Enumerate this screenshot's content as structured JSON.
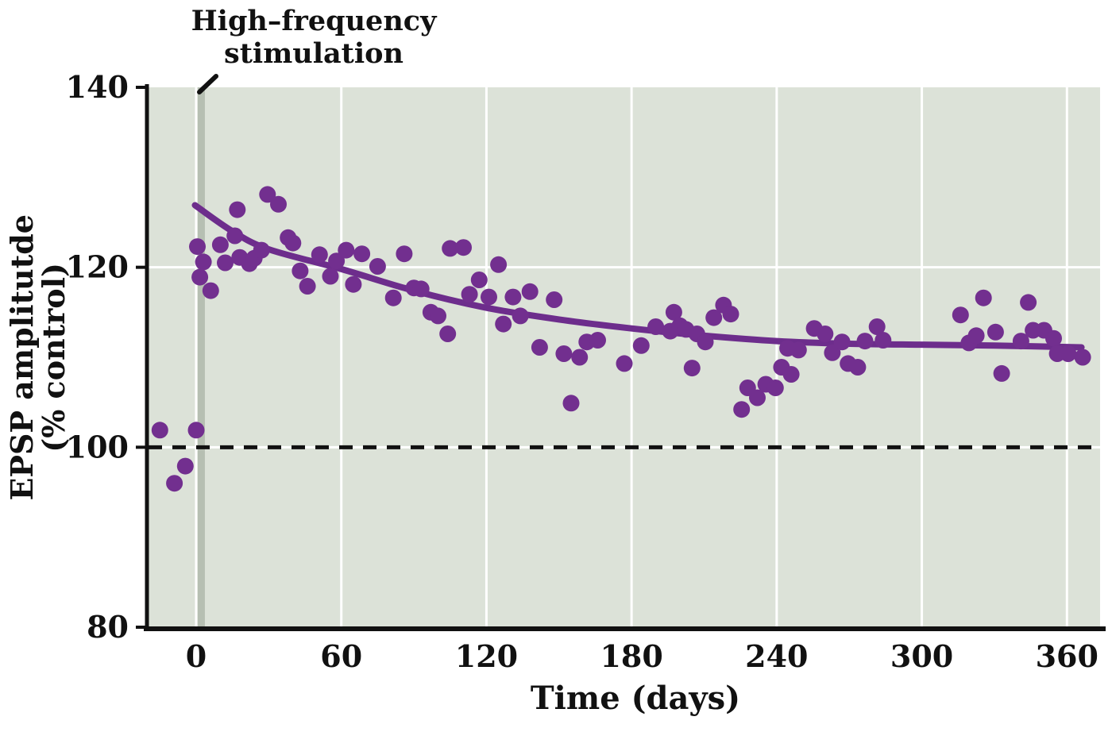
{
  "annotation": {
    "line1": "High–frequency",
    "line2": "stimulation"
  },
  "chart_data": {
    "type": "scatter",
    "xlabel": "Time (days)",
    "ylabel_line1": "EPSP amplitutde",
    "ylabel_line2": "(% control)",
    "x_ticks": [
      0,
      60,
      120,
      180,
      240,
      300,
      360
    ],
    "y_ticks": [
      80,
      100,
      120,
      140
    ],
    "xlim": [
      -19.7,
      373.7
    ],
    "ylim": [
      80,
      140
    ],
    "grid": "on",
    "baseline_value": 100,
    "stim_bar": {
      "day_start": 0.6,
      "day_end": 3.6
    },
    "colors": {
      "point": "#722f8f",
      "trend_line": "#6d2d8c",
      "plot_background": "#dce2d8",
      "gridline": "#ffffff",
      "baseline": "#111111",
      "stim_bar": "#b6bfb2",
      "axis": "#111111",
      "text": "#111111"
    },
    "points": [
      [
        -15,
        101.9
      ],
      [
        -9,
        96.0
      ],
      [
        -4.5,
        97.9
      ],
      [
        0,
        101.9
      ],
      [
        0.5,
        122.3
      ],
      [
        1.5,
        118.9
      ],
      [
        3,
        120.6
      ],
      [
        6,
        117.4
      ],
      [
        10,
        122.5
      ],
      [
        12,
        120.5
      ],
      [
        16,
        123.5
      ],
      [
        17,
        126.4
      ],
      [
        18,
        121.1
      ],
      [
        22,
        120.4
      ],
      [
        24,
        121.0
      ],
      [
        27,
        121.9
      ],
      [
        29.5,
        128.1
      ],
      [
        34,
        127.0
      ],
      [
        38,
        123.3
      ],
      [
        40,
        122.7
      ],
      [
        43,
        119.6
      ],
      [
        46,
        117.9
      ],
      [
        51,
        121.4
      ],
      [
        55.5,
        119.0
      ],
      [
        58,
        120.7
      ],
      [
        62,
        121.9
      ],
      [
        65,
        118.1
      ],
      [
        68.5,
        121.5
      ],
      [
        75,
        120.1
      ],
      [
        81.5,
        116.6
      ],
      [
        86,
        121.5
      ],
      [
        90,
        117.7
      ],
      [
        93,
        117.6
      ],
      [
        97,
        115.0
      ],
      [
        100,
        114.6
      ],
      [
        104,
        112.6
      ],
      [
        105,
        122.1
      ],
      [
        110.5,
        122.2
      ],
      [
        113,
        117.0
      ],
      [
        117,
        118.6
      ],
      [
        121,
        116.7
      ],
      [
        125,
        120.3
      ],
      [
        127,
        113.7
      ],
      [
        131,
        116.7
      ],
      [
        134,
        114.6
      ],
      [
        138,
        117.3
      ],
      [
        142,
        111.1
      ],
      [
        148,
        116.4
      ],
      [
        152,
        110.4
      ],
      [
        155,
        104.9
      ],
      [
        158.5,
        110.0
      ],
      [
        161.5,
        111.7
      ],
      [
        166,
        111.9
      ],
      [
        177,
        109.3
      ],
      [
        184,
        111.3
      ],
      [
        190,
        113.4
      ],
      [
        196,
        112.9
      ],
      [
        197.5,
        115.0
      ],
      [
        200,
        113.5
      ],
      [
        202.5,
        113.1
      ],
      [
        205,
        108.8
      ],
      [
        207,
        112.6
      ],
      [
        210.5,
        111.7
      ],
      [
        214,
        114.4
      ],
      [
        218,
        115.8
      ],
      [
        221,
        114.8
      ],
      [
        225.5,
        104.2
      ],
      [
        228,
        106.6
      ],
      [
        232,
        105.5
      ],
      [
        235.5,
        107.0
      ],
      [
        239.5,
        106.6
      ],
      [
        242,
        108.9
      ],
      [
        244.5,
        111.0
      ],
      [
        246,
        108.1
      ],
      [
        249,
        110.8
      ],
      [
        255.5,
        113.2
      ],
      [
        260,
        112.6
      ],
      [
        263,
        110.5
      ],
      [
        267,
        111.7
      ],
      [
        269.5,
        109.3
      ],
      [
        273.5,
        108.9
      ],
      [
        276.5,
        111.8
      ],
      [
        281.5,
        113.4
      ],
      [
        284,
        111.9
      ],
      [
        316,
        114.7
      ],
      [
        319.5,
        111.6
      ],
      [
        322.5,
        112.4
      ],
      [
        325.5,
        116.6
      ],
      [
        330.5,
        112.8
      ],
      [
        333,
        108.2
      ],
      [
        341,
        111.8
      ],
      [
        344,
        116.1
      ],
      [
        346,
        113.0
      ],
      [
        350.5,
        113.0
      ],
      [
        354.5,
        112.1
      ],
      [
        356,
        110.4
      ],
      [
        360.5,
        110.4
      ],
      [
        366.5,
        110.0
      ]
    ],
    "trend": {
      "x": [
        -0.5,
        15,
        30,
        60,
        90,
        120,
        150,
        180,
        210,
        240,
        270,
        300,
        330,
        366
      ],
      "y": [
        126.9,
        124.0,
        122.0,
        119.8,
        117.4,
        115.5,
        114.2,
        113.2,
        112.4,
        111.8,
        111.5,
        111.4,
        111.3,
        111.1
      ]
    }
  }
}
